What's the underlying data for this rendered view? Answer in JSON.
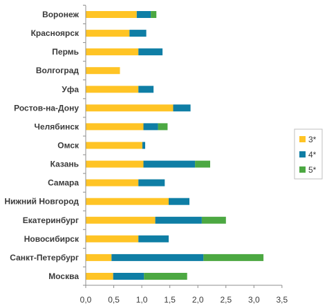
{
  "chart_data": {
    "type": "bar",
    "orientation": "horizontal",
    "stacked": true,
    "categories": [
      "Воронеж",
      "Красноярск",
      "Пермь",
      "Волгоград",
      "Уфа",
      "Ростов-на-Дону",
      "Челябинск",
      "Омск",
      "Казань",
      "Самара",
      "Нижний Новгород",
      "Екатеринбург",
      "Новосибирск",
      "Санкт-Петербург",
      "Москва"
    ],
    "series": [
      {
        "name": "3*",
        "color": "#FFC425",
        "values": [
          0.91,
          0.78,
          0.94,
          0.61,
          0.94,
          1.56,
          1.03,
          1.01,
          1.03,
          0.94,
          1.48,
          1.24,
          0.94,
          0.46,
          0.49
        ]
      },
      {
        "name": "4*",
        "color": "#0F7EA5",
        "values": [
          0.25,
          0.3,
          0.43,
          0.0,
          0.27,
          0.31,
          0.26,
          0.05,
          0.92,
          0.47,
          0.37,
          0.83,
          0.54,
          1.64,
          0.55
        ]
      },
      {
        "name": "5*",
        "color": "#4CA842",
        "values": [
          0.1,
          0.0,
          0.0,
          0.0,
          0.0,
          0.0,
          0.17,
          0.0,
          0.27,
          0.0,
          0.0,
          0.43,
          0.0,
          1.07,
          0.77
        ]
      }
    ],
    "xlim": [
      0,
      3.5
    ],
    "xticks": [
      "0,0",
      "0,5",
      "1,0",
      "1,5",
      "2,0",
      "2,5",
      "3,0",
      "3,5"
    ],
    "xlabel": "",
    "ylabel": "",
    "title": "",
    "grid": false,
    "legend_position": "right"
  }
}
